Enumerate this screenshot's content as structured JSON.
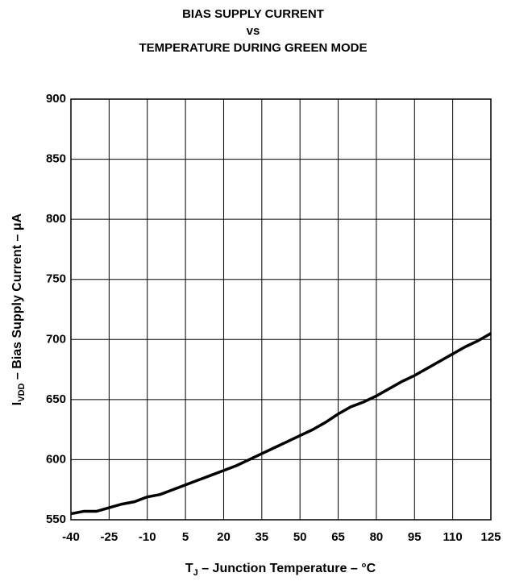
{
  "chart_data": {
    "type": "line",
    "title": [
      "BIAS SUPPLY CURRENT",
      "vs",
      "TEMPERATURE DURING GREEN MODE"
    ],
    "xlabel": [
      "T",
      "J",
      " – Junction Temperature – °C"
    ],
    "ylabel": [
      "I",
      "VDD",
      " – Bias Supply Current – μA"
    ],
    "x": [
      -40,
      -35,
      -30,
      -25,
      -20,
      -15,
      -10,
      -5,
      0,
      5,
      10,
      15,
      20,
      25,
      30,
      35,
      40,
      45,
      50,
      55,
      60,
      65,
      70,
      75,
      80,
      85,
      90,
      95,
      100,
      105,
      110,
      115,
      120,
      125
    ],
    "series": [
      {
        "color": "#000000",
        "values": [
          555,
          557,
          557,
          560,
          563,
          565,
          569,
          571,
          575,
          579,
          583,
          587,
          591,
          595,
          600,
          605,
          610,
          615,
          620,
          625,
          631,
          638,
          644,
          648,
          653,
          659,
          665,
          670,
          676,
          682,
          688,
          694,
          699,
          705
        ]
      }
    ],
    "xlim": [
      -40,
      125
    ],
    "xticks": [
      -40,
      -25,
      -10,
      5,
      20,
      35,
      50,
      65,
      80,
      95,
      110,
      125
    ],
    "ylim": [
      550,
      900
    ],
    "yticks": [
      550,
      600,
      650,
      700,
      750,
      800,
      850,
      900
    ],
    "grid": true
  }
}
